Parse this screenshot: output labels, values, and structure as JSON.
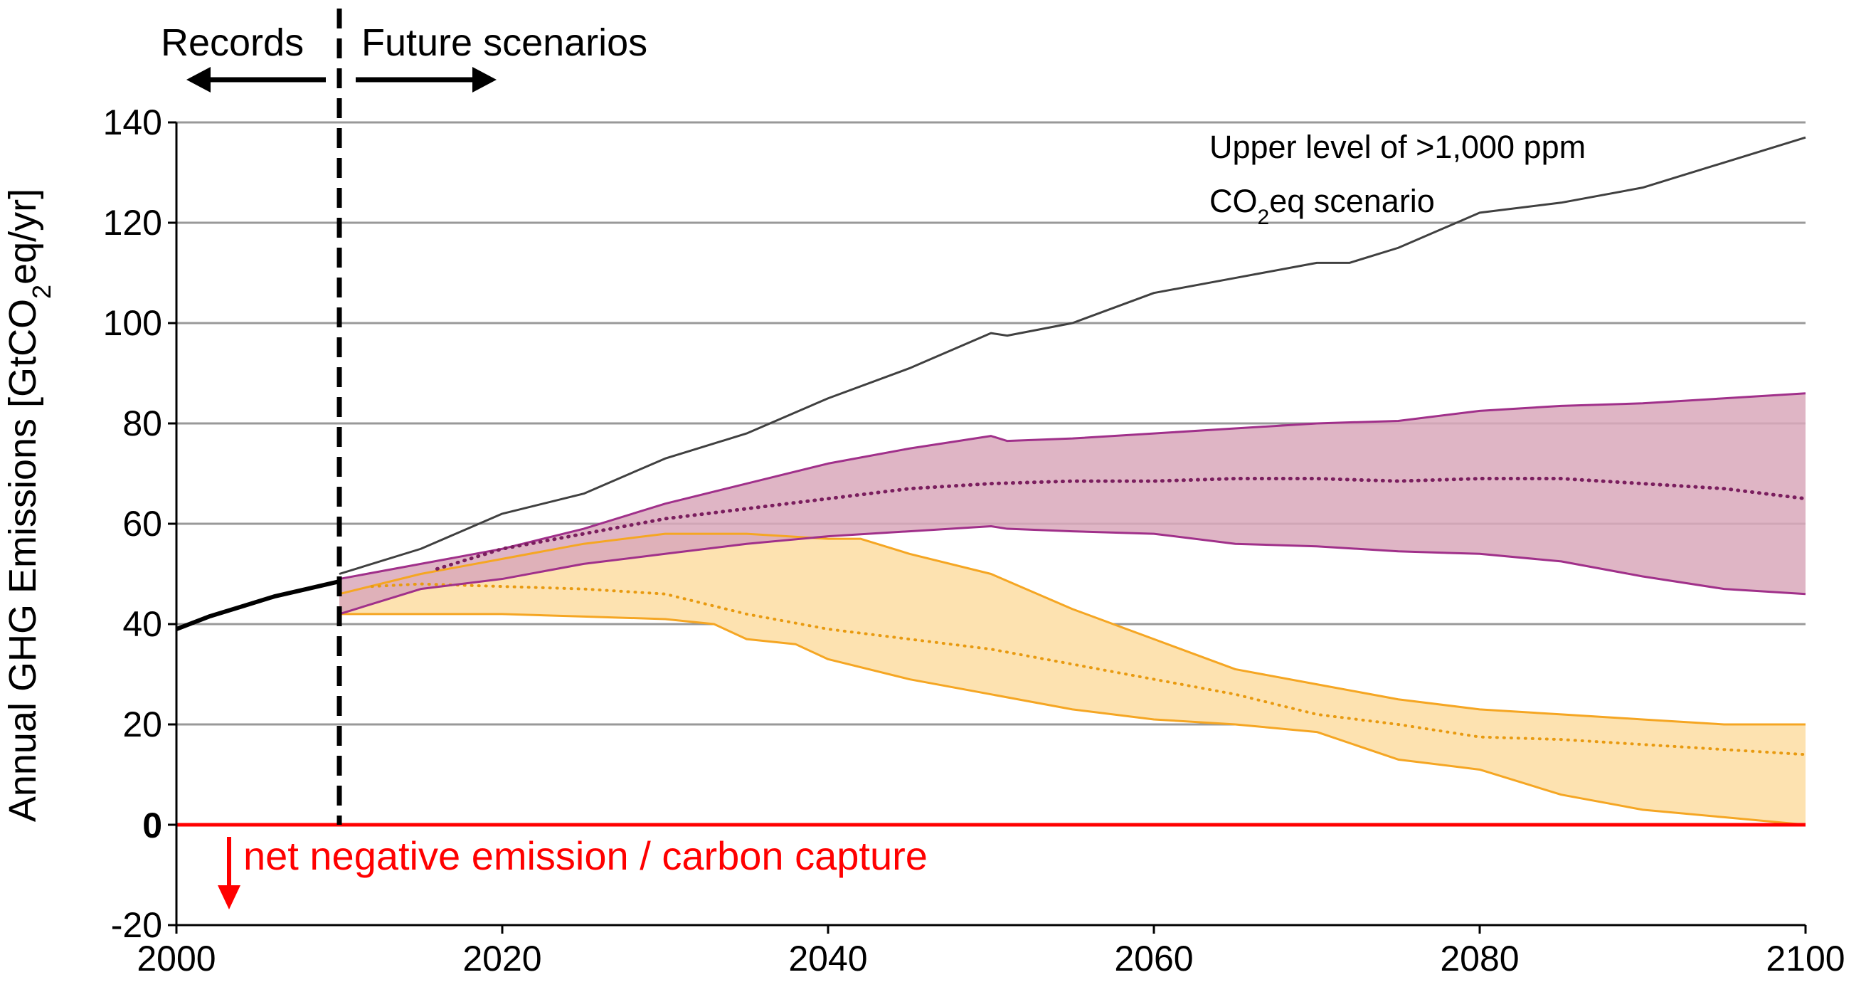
{
  "chart_data": {
    "type": "area",
    "title": "",
    "xlabel": "",
    "ylabel_parts": [
      "Annual GHG Emissions [GtCO",
      "2",
      "eq/yr]"
    ],
    "xlim": [
      2000,
      2100
    ],
    "ylim": [
      -20,
      140
    ],
    "x_ticks": [
      2000,
      2020,
      2040,
      2060,
      2080,
      2100
    ],
    "y_ticks": [
      -20,
      0,
      20,
      40,
      60,
      80,
      100,
      120,
      140
    ],
    "x_tick_labels": [
      "2000",
      "2020",
      "2040",
      "2060",
      "2080",
      "2100"
    ],
    "y_tick_labels": [
      "-20",
      "0",
      "20",
      "40",
      "60",
      "80",
      "100",
      "120",
      "140"
    ],
    "zero_label": "0",
    "grid": true,
    "divider_year": 2010,
    "period_labels": {
      "past": "Records",
      "future": "Future scenarios"
    },
    "annotations": {
      "upper_line_1": "Upper level of >1,000 ppm",
      "upper_line_2_parts": [
        "CO",
        "2",
        "eq scenario"
      ],
      "negative": "net negative emission / carbon capture"
    },
    "colors": {
      "records": "#000000",
      "upper": "#404040",
      "purple_line": "#a0308a",
      "purple_mid": "#7a1e5e",
      "purple_fill": "#d9a8bb",
      "orange_line": "#f5a623",
      "orange_mid": "#e89a10",
      "orange_fill": "#fde2b0",
      "zero": "#ff0000",
      "grid": "#999999"
    },
    "series": [
      {
        "name": "Records",
        "x": [
          2000,
          2002,
          2004,
          2006,
          2008,
          2010
        ],
        "y": [
          39,
          41.5,
          43.5,
          45.5,
          47,
          48.5
        ]
      },
      {
        "name": "Upper level of >1,000 ppm CO2eq scenario",
        "x": [
          2010,
          2015,
          2020,
          2025,
          2030,
          2035,
          2040,
          2045,
          2050,
          2051,
          2055,
          2060,
          2065,
          2070,
          2072,
          2075,
          2080,
          2085,
          2090,
          2095,
          2100
        ],
        "y": [
          50,
          55,
          62,
          66,
          73,
          78,
          85,
          91,
          98,
          97.5,
          100,
          106,
          109,
          112,
          112,
          115,
          122,
          124,
          127,
          132,
          137
        ]
      },
      {
        "name": "Higher scenario band upper",
        "x": [
          2010,
          2015,
          2020,
          2025,
          2030,
          2035,
          2040,
          2045,
          2050,
          2051,
          2055,
          2060,
          2065,
          2070,
          2075,
          2080,
          2085,
          2090,
          2095,
          2100
        ],
        "y": [
          49,
          52,
          55,
          59,
          64,
          68,
          72,
          75,
          77.5,
          76.5,
          77,
          78,
          79,
          80,
          80.5,
          82.5,
          83.5,
          84,
          85,
          86
        ]
      },
      {
        "name": "Higher scenario band lower",
        "x": [
          2010,
          2015,
          2020,
          2025,
          2030,
          2035,
          2040,
          2045,
          2050,
          2051,
          2055,
          2060,
          2065,
          2070,
          2075,
          2080,
          2085,
          2090,
          2095,
          2100
        ],
        "y": [
          42,
          47,
          49,
          52,
          54,
          56,
          57.5,
          58.5,
          59.5,
          59,
          58.5,
          58,
          56,
          55.5,
          54.5,
          54,
          52.5,
          49.5,
          47,
          46
        ]
      },
      {
        "name": "Higher scenario median",
        "x": [
          2016,
          2020,
          2025,
          2030,
          2035,
          2040,
          2045,
          2050,
          2055,
          2060,
          2065,
          2070,
          2075,
          2080,
          2085,
          2090,
          2095,
          2100
        ],
        "y": [
          51,
          55,
          58,
          61,
          63,
          65,
          67,
          68,
          68.5,
          68.5,
          69,
          69,
          68.5,
          69,
          69,
          68,
          67,
          65
        ]
      },
      {
        "name": "Lower scenario band upper",
        "x": [
          2010,
          2015,
          2020,
          2025,
          2030,
          2035,
          2040,
          2042,
          2045,
          2050,
          2055,
          2060,
          2065,
          2070,
          2075,
          2080,
          2085,
          2090,
          2095,
          2100
        ],
        "y": [
          46,
          50,
          53,
          56,
          58,
          58,
          57,
          57,
          54,
          50,
          43,
          37,
          31,
          28,
          25,
          23,
          22,
          21,
          20,
          20
        ]
      },
      {
        "name": "Lower scenario band lower",
        "x": [
          2010,
          2015,
          2020,
          2025,
          2030,
          2033,
          2035,
          2038,
          2040,
          2045,
          2050,
          2055,
          2060,
          2065,
          2070,
          2075,
          2080,
          2085,
          2090,
          2095,
          2100
        ],
        "y": [
          42,
          42,
          42,
          41.5,
          41,
          40,
          37,
          36,
          33,
          29,
          26,
          23,
          21,
          20,
          18.5,
          13,
          11,
          6,
          3,
          1.5,
          0
        ]
      },
      {
        "name": "Lower scenario median",
        "x": [
          2012,
          2015,
          2020,
          2025,
          2030,
          2035,
          2040,
          2045,
          2050,
          2055,
          2060,
          2065,
          2070,
          2075,
          2080,
          2085,
          2090,
          2095,
          2100
        ],
        "y": [
          47.5,
          48,
          47.5,
          47,
          46,
          42,
          39,
          37,
          35,
          32,
          29,
          26,
          22,
          20,
          17.5,
          17,
          16,
          15,
          14
        ]
      }
    ]
  }
}
